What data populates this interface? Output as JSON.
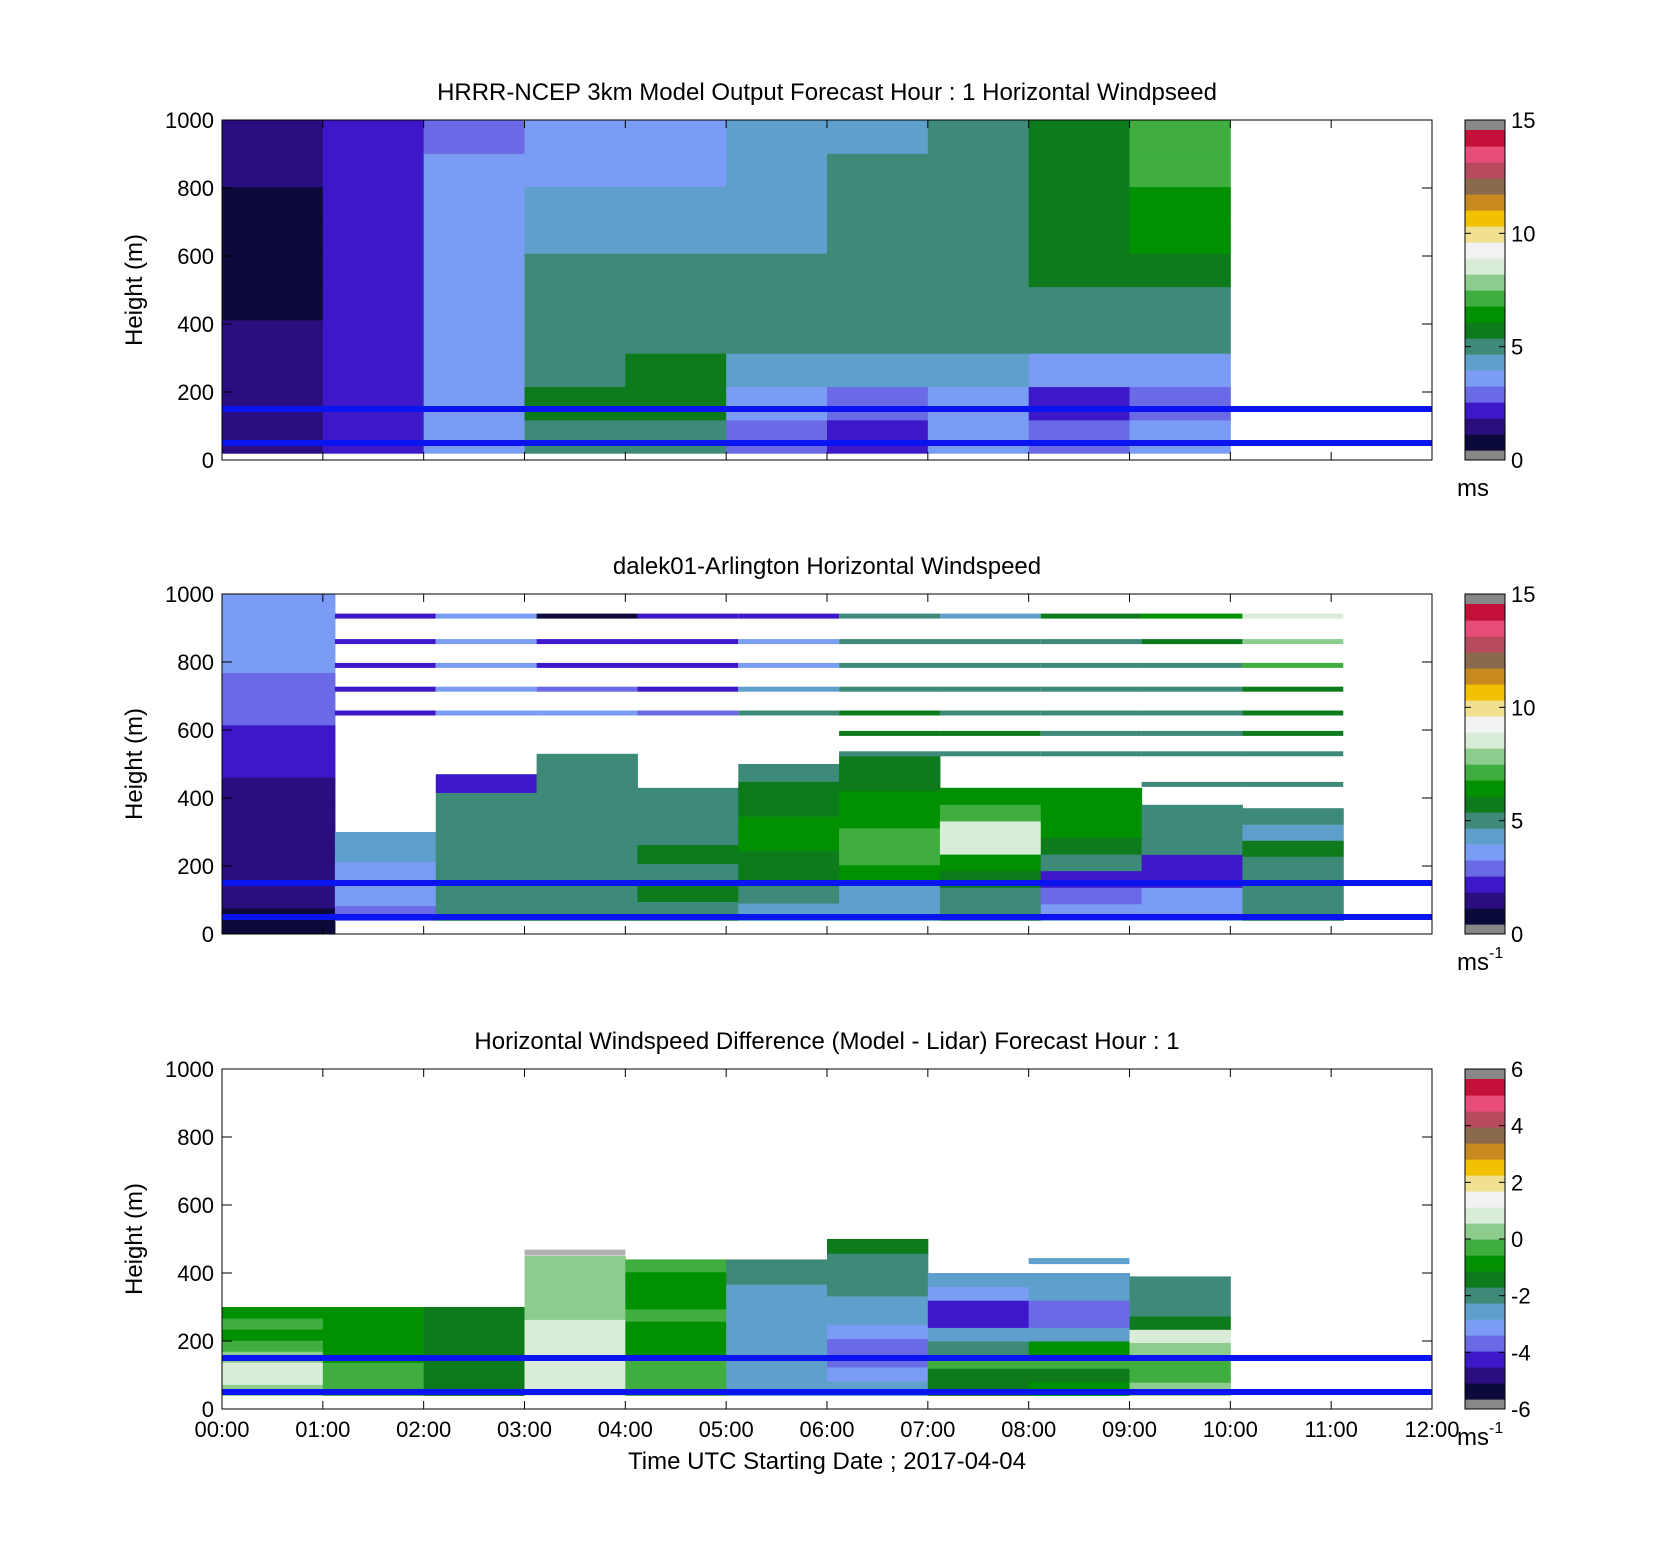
{
  "chart_data": [
    {
      "type": "heatmap",
      "title": "HRRR-NCEP 3km Model Output   Forecast Hour : 1 Horizontal Windpseed",
      "ylabel": "Height (m)",
      "ylim": [
        0,
        1000
      ],
      "yticks": [
        0,
        200,
        400,
        600,
        800,
        1000
      ],
      "xlim": [
        0,
        12
      ],
      "colorbar": {
        "range": [
          0,
          15
        ],
        "ticks": [
          0,
          5,
          10,
          15
        ],
        "unit": "ms",
        "unit_sup": ""
      },
      "reference_heights_m": [
        50,
        150
      ],
      "cells": [
        {
          "x": [
            0,
            1
          ],
          "y": [
            20,
            1000
          ],
          "v": [
            1.0,
            1.2,
            1.0,
            0.8,
            0.6,
            0.5,
            0.5,
            0.6,
            0.8,
            1.0
          ]
        },
        {
          "x": [
            1,
            2
          ],
          "y": [
            20,
            1000
          ],
          "v": [
            2.0,
            1.9,
            1.8,
            1.8,
            1.8,
            1.8,
            1.9,
            2.0,
            2.0,
            2.0
          ]
        },
        {
          "x": [
            2,
            3
          ],
          "y": [
            20,
            1000
          ],
          "v": [
            3.0,
            3.3,
            3.5,
            3.5,
            3.5,
            3.6,
            3.5,
            3.2,
            3.1,
            2.8
          ]
        },
        {
          "x": [
            3,
            4
          ],
          "y": [
            20,
            1000
          ],
          "v": [
            5.0,
            5.5,
            5.2,
            5.2,
            5.0,
            5.0,
            4.2,
            4.0,
            3.6,
            3.7
          ]
        },
        {
          "x": [
            4,
            5
          ],
          "y": [
            20,
            1000
          ],
          "v": [
            5.0,
            5.5,
            5.3,
            5.2,
            5.1,
            5.0,
            4.4,
            4.0,
            3.6,
            3.5
          ]
        },
        {
          "x": [
            5,
            6
          ],
          "y": [
            20,
            1000
          ],
          "v": [
            2.5,
            3.3,
            4.3,
            4.7,
            4.7,
            4.6,
            4.4,
            4.3,
            4.0,
            3.8
          ]
        },
        {
          "x": [
            6,
            7
          ],
          "y": [
            20,
            1000
          ],
          "v": [
            2.0,
            2.5,
            4.3,
            4.8,
            4.9,
            5.0,
            4.9,
            4.8,
            4.5,
            4.4
          ]
        },
        {
          "x": [
            7,
            8
          ],
          "y": [
            20,
            1000
          ],
          "v": [
            3.0,
            3.6,
            4.3,
            5.0,
            5.1,
            5.2,
            5.2,
            5.2,
            5.0,
            5.0
          ]
        },
        {
          "x": [
            8,
            9
          ],
          "y": [
            20,
            1000
          ],
          "v": [
            2.4,
            2.0,
            3.1,
            4.7,
            5.0,
            5.4,
            5.5,
            5.6,
            5.6,
            5.7
          ]
        },
        {
          "x": [
            9,
            10
          ],
          "y": [
            20,
            1000
          ],
          "v": [
            3.5,
            2.8,
            3.4,
            4.5,
            5.2,
            5.4,
            6.0,
            6.4,
            6.8,
            7.0
          ]
        }
      ]
    },
    {
      "type": "heatmap",
      "title": "dalek01-Arlington  Horizontal Windspeed",
      "ylabel": "Height (m)",
      "ylim": [
        0,
        1000
      ],
      "yticks": [
        0,
        200,
        400,
        600,
        800,
        1000
      ],
      "xlim": [
        0,
        12
      ],
      "colorbar": {
        "range": [
          0,
          15
        ],
        "ticks": [
          0,
          5,
          10,
          15
        ],
        "unit": "ms",
        "unit_sup": "-1"
      },
      "reference_heights_m": [
        50,
        150
      ],
      "cells": [
        {
          "x": [
            0,
            1.12
          ],
          "y": [
            0,
            1000
          ],
          "v": [
            0.6,
            0.8,
            0.9,
            1.1,
            1.2,
            1.4,
            1.6,
            1.9,
            2.3,
            2.8,
            3.1,
            3.4,
            3.5
          ]
        },
        {
          "x": [
            1.12,
            2.12
          ],
          "y": [
            40,
            300
          ],
          "v": [
            2.8,
            3.0,
            3.3,
            3.5,
            3.8,
            4.0
          ]
        },
        {
          "x": [
            2.12,
            3.12
          ],
          "y": [
            40,
            470
          ],
          "v": [
            5.0,
            5.1,
            5.0,
            5.2,
            5.1,
            5.0,
            4.8,
            2.2
          ]
        },
        {
          "x": [
            3.12,
            4.12
          ],
          "y": [
            40,
            530
          ],
          "v": [
            5.0,
            5.1,
            5.2,
            5.1,
            5.1,
            5.0,
            5.0,
            4.9,
            4.6
          ]
        },
        {
          "x": [
            4.12,
            5.12
          ],
          "y": [
            40,
            430
          ],
          "v": [
            5.2,
            5.3,
            5.2,
            5.3,
            5.0,
            5.1,
            5.0
          ]
        },
        {
          "x": [
            5.12,
            6.12
          ],
          "y": [
            40,
            500
          ],
          "v": [
            4.4,
            5.0,
            5.6,
            5.9,
            6.1,
            6.0,
            5.8,
            5.5,
            5.2
          ]
        },
        {
          "x": [
            6.12,
            7.12
          ],
          "y": [
            40,
            530
          ],
          "v": [
            4.0,
            4.3,
            6.0,
            6.8,
            7.0,
            6.6,
            6.3,
            5.8,
            5.3
          ]
        },
        {
          "x": [
            7.12,
            8.12
          ],
          "y": [
            40,
            430
          ],
          "v": [
            5.0,
            5.0,
            5.8,
            6.0,
            8.3,
            8.5,
            7.0,
            6.6
          ]
        },
        {
          "x": [
            8.12,
            9.12
          ],
          "y": [
            40,
            430
          ],
          "v": [
            3.2,
            2.6,
            2.0,
            5.1,
            5.4,
            6.0,
            6.4,
            6.0
          ]
        },
        {
          "x": [
            9.12,
            10.12
          ],
          "y": [
            40,
            380
          ],
          "v": [
            3.5,
            3.0,
            2.0,
            1.8,
            5.0,
            5.2,
            5.0
          ]
        },
        {
          "x": [
            10.12,
            11.12
          ],
          "y": [
            40,
            370
          ],
          "v": [
            5.1,
            5.0,
            5.2,
            5.0,
            5.3,
            4.3,
            5.1
          ]
        }
      ],
      "upper_lines": {
        "heights": [
          935,
          860,
          790,
          720,
          650,
          590,
          530,
          440
        ],
        "columns": [
          {
            "x": [
              1.12,
              2.12
            ],
            "v": [
              2.0,
              2.1,
              2.0,
              2.0,
              2.1,
              0,
              0,
              0
            ]
          },
          {
            "x": [
              2.12,
              3.12
            ],
            "v": [
              3.0,
              3.2,
              3.1,
              3.3,
              3.4,
              0,
              0,
              0
            ]
          },
          {
            "x": [
              3.12,
              4.12
            ],
            "v": [
              0.6,
              1.6,
              2.0,
              2.6,
              3.3,
              0,
              0,
              0
            ]
          },
          {
            "x": [
              4.12,
              5.12
            ],
            "v": [
              1.8,
              1.6,
              1.6,
              1.8,
              2.6,
              0,
              0,
              0
            ]
          },
          {
            "x": [
              5.12,
              6.12
            ],
            "v": [
              2.1,
              3.2,
              3.2,
              3.8,
              5.0,
              0,
              0,
              0
            ]
          },
          {
            "x": [
              6.12,
              7.12
            ],
            "v": [
              4.7,
              5.0,
              5.0,
              5.1,
              5.5,
              5.3,
              5.0,
              0
            ]
          },
          {
            "x": [
              7.12,
              8.12
            ],
            "v": [
              4.2,
              4.6,
              5.0,
              5.0,
              5.2,
              5.3,
              5.2,
              0
            ]
          },
          {
            "x": [
              8.12,
              9.12
            ],
            "v": [
              5.6,
              5.0,
              5.0,
              5.0,
              5.1,
              5.2,
              5.0,
              0
            ]
          },
          {
            "x": [
              9.12,
              10.12
            ],
            "v": [
              6.6,
              5.8,
              5.2,
              5.0,
              5.0,
              5.1,
              5.0,
              5.0
            ]
          },
          {
            "x": [
              10.12,
              11.12
            ],
            "v": [
              8.6,
              8.0,
              7.0,
              5.8,
              5.6,
              5.3,
              5.2,
              5.0
            ]
          }
        ]
      }
    },
    {
      "type": "heatmap",
      "title": "Horizontal Windspeed Difference (Model - Lidar) Forecast Hour : 1",
      "ylabel": "Height (m)",
      "xlabel": "Time UTC  Starting Date ; 2017-04-04",
      "ylim": [
        0,
        1000
      ],
      "yticks": [
        0,
        200,
        400,
        600,
        800,
        1000
      ],
      "xlim": [
        0,
        12
      ],
      "xticks": [
        "00:00",
        "01:00",
        "02:00",
        "03:00",
        "04:00",
        "05:00",
        "06:00",
        "07:00",
        "08:00",
        "09:00",
        "10:00",
        "11:00",
        "12:00"
      ],
      "colorbar": {
        "range": [
          -6,
          6
        ],
        "ticks": [
          -6,
          -4,
          -2,
          0,
          2,
          4,
          6
        ],
        "unit": "ms",
        "unit_sup": "-1"
      },
      "reference_heights_m": [
        50,
        150
      ],
      "cells": [
        {
          "x": [
            0,
            1
          ],
          "y": [
            40,
            300
          ],
          "v": [
            0.6,
            0.8,
            0.7,
            0.3,
            -0.4,
            -0.7,
            -0.6,
            -1.0
          ]
        },
        {
          "x": [
            1,
            2
          ],
          "y": [
            40,
            300
          ],
          "v": [
            -0.5,
            -0.6,
            -0.5,
            -0.7,
            -0.9,
            -1.0,
            -1.1,
            -1.0
          ]
        },
        {
          "x": [
            2,
            3
          ],
          "y": [
            40,
            300
          ],
          "v": [
            -1.6,
            -1.5,
            -1.4,
            -1.3,
            -1.5,
            -1.4,
            -1.5,
            -1.6
          ]
        },
        {
          "x": [
            3,
            4
          ],
          "y": [
            40,
            450
          ],
          "v": [
            0.8,
            0.9,
            0.7,
            0.8,
            0.9,
            0.7,
            0.6,
            0.5,
            0.4,
            0.3,
            0.2
          ]
        },
        {
          "x": [
            4,
            5
          ],
          "y": [
            40,
            440
          ],
          "v": [
            -0.2,
            -0.1,
            -0.6,
            -0.7,
            -0.8,
            -0.7,
            -0.6,
            -0.7,
            -0.8,
            -0.7,
            -0.6
          ]
        },
        {
          "x": [
            5,
            6
          ],
          "y": [
            40,
            440
          ],
          "v": [
            -2.6,
            -2.8,
            -2.7,
            -2.8,
            -2.7,
            -2.6,
            -2.7,
            -2.8,
            -2.7,
            -2.3,
            -1.9
          ]
        },
        {
          "x": [
            6,
            7
          ],
          "y": [
            40,
            500
          ],
          "v": [
            -2.6,
            -3.4,
            -3.6,
            -3.8,
            -3.3,
            -3.0,
            -2.6,
            -2.4,
            -2.3,
            -2.0,
            -1.6
          ]
        },
        {
          "x": [
            7,
            8
          ],
          "y": [
            40,
            400
          ],
          "v": [
            -1.4,
            -1.2,
            -0.4,
            -2.4,
            -3.0,
            -4.6,
            -4.8,
            -3.2,
            -3.0
          ]
        },
        {
          "x": [
            8,
            9
          ],
          "y": [
            40,
            400
          ],
          "v": [
            -1.0,
            -1.3,
            -0.4,
            -0.8,
            -2.6,
            -3.8,
            -4.0,
            -2.6,
            -2.5
          ]
        },
        {
          "x": [
            9,
            10
          ],
          "y": [
            40,
            390
          ],
          "v": [
            0.4,
            -0.4,
            -0.2,
            0.5,
            0.8,
            -1.6,
            -2.3,
            -2.4,
            -2.0
          ]
        }
      ],
      "extra_lines": [
        {
          "x": [
            3,
            4
          ],
          "y": 460,
          "v": 0.0
        },
        {
          "x": [
            8,
            9
          ],
          "y": 435,
          "v": -3.0
        }
      ]
    }
  ],
  "colormap": [
    "#0b0a3a",
    "#2a0e80",
    "#3d18c8",
    "#6a6ae6",
    "#7a9cf4",
    "#5f9fcb",
    "#3e8a78",
    "#0d7a1c",
    "#009000",
    "#3fae3f",
    "#8ccc8c",
    "#d8ecd8",
    "#f2f2f2",
    "#f0e090",
    "#f2c100",
    "#c88a1e",
    "#8a6a4c",
    "#b84a60",
    "#e84d7a",
    "#c41038"
  ]
}
